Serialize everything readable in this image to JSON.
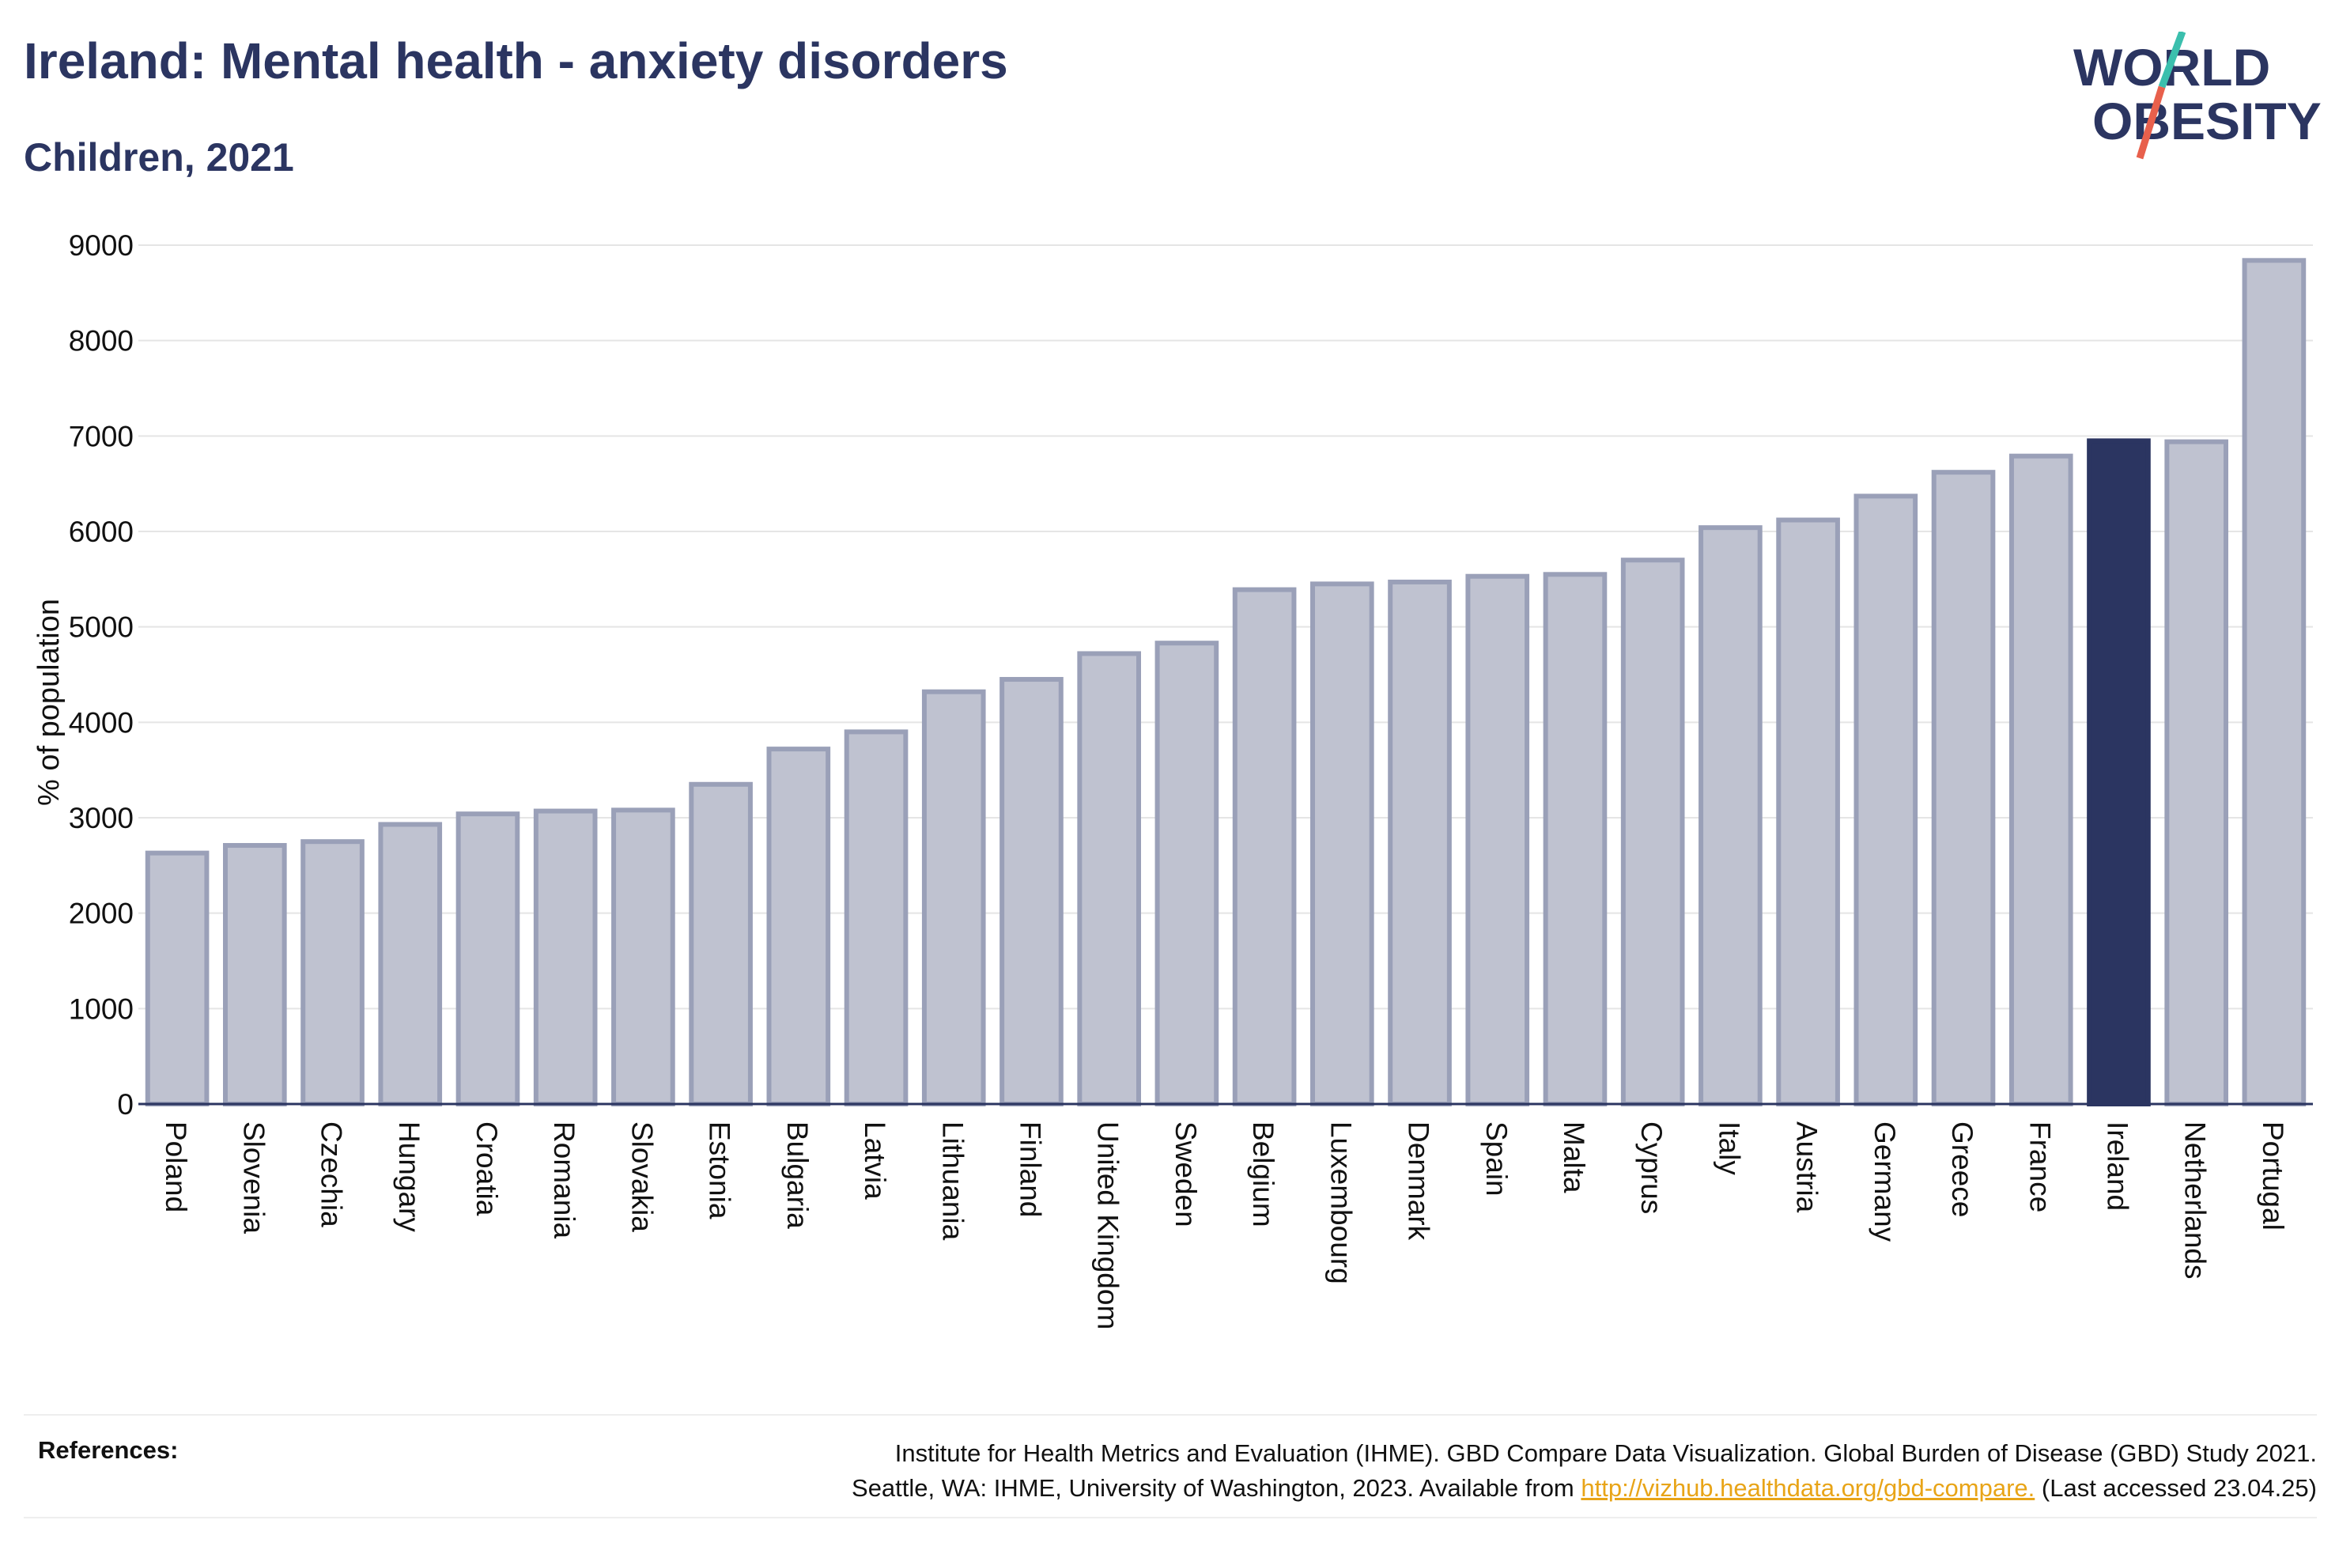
{
  "header": {
    "title": "Ireland: Mental health - anxiety disorders",
    "subtitle": "Children, 2021"
  },
  "logo": {
    "line1": "WORLD",
    "line2": "OBESITY",
    "accent_teal": "#3bbfad",
    "accent_red": "#e8604c"
  },
  "colors": {
    "highlight": "#2b3561",
    "bar_fill": "#bfc2d0",
    "bar_stroke": "#9aa0b8",
    "grid": "#e5e5e5"
  },
  "chart_data": {
    "type": "bar",
    "ylabel": "% of population",
    "ylim": [
      0,
      9000
    ],
    "yticks": [
      0,
      1000,
      2000,
      3000,
      4000,
      5000,
      6000,
      7000,
      8000,
      9000
    ],
    "highlight": "Ireland",
    "grid": true,
    "categories": [
      "Poland",
      "Slovenia",
      "Czechia",
      "Hungary",
      "Croatia",
      "Romania",
      "Slovakia",
      "Estonia",
      "Bulgaria",
      "Latvia",
      "Lithuania",
      "Finland",
      "United Kingdom",
      "Sweden",
      "Belgium",
      "Luxembourg",
      "Denmark",
      "Spain",
      "Malta",
      "Cyprus",
      "Italy",
      "Austria",
      "Germany",
      "Greece",
      "France",
      "Ireland",
      "Netherlands",
      "Portugal"
    ],
    "values": [
      2630,
      2710,
      2750,
      2930,
      3040,
      3070,
      3080,
      3350,
      3720,
      3900,
      4320,
      4450,
      4720,
      4830,
      5390,
      5450,
      5470,
      5530,
      5550,
      5700,
      6040,
      6120,
      6370,
      6620,
      6790,
      6950,
      6940,
      8840
    ]
  },
  "references": {
    "label": "References:",
    "line1": "Institute for Health Metrics and Evaluation (IHME). GBD Compare Data Visualization. Global Burden of Disease (GBD) Study 2021.",
    "line2_prefix": "Seattle, WA: IHME, University of Washington, 2023. Available from",
    "link": "http://vizhub.healthdata.org/gbd-compare.",
    "line2_suffix": "(Last accessed 23.04.25)"
  }
}
